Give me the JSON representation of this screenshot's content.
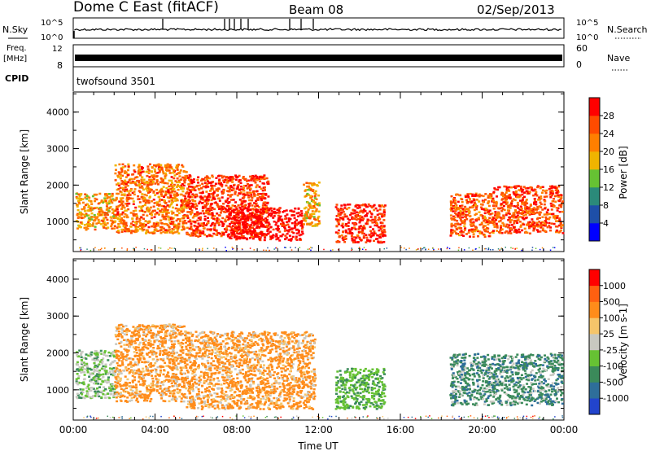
{
  "header": {
    "radar": "Dome C East (fitACF)",
    "beam": "Beam 08",
    "date": "02/Sep/2013"
  },
  "top_panels": {
    "nsky_label": "N.Sky",
    "nsky_ticks": [
      "10^5",
      "10^0"
    ],
    "nsearch_label": "N.Search",
    "nsearch_ticks": [
      "10^5",
      "10^0"
    ],
    "freq_label": "Freq.",
    "freq_unit": "[MHz]",
    "freq_ticks": [
      "12",
      "8"
    ],
    "nave_label": "Nave",
    "nave_ticks": [
      "60",
      "0"
    ],
    "cpid_label": "CPID",
    "cpid_value": "twofsound 3501",
    "line_color": "#000000"
  },
  "chart_data": [
    {
      "type": "heatmap",
      "name": "power-panel",
      "x": [
        "00:00",
        "04:00",
        "08:00",
        "12:00",
        "16:00",
        "20:00",
        "00:00"
      ],
      "xlim": [
        0,
        24
      ],
      "ylabel": "Slant Range [km]",
      "yticks": [
        "1000",
        "2000",
        "3000",
        "4000"
      ],
      "ylim": [
        180,
        4550
      ],
      "colorbar": {
        "label": "Power [dB]",
        "ticks": [
          "28",
          "24",
          "20",
          "16",
          "12",
          "8",
          "4"
        ],
        "colors": [
          "#0000ff",
          "#1e4fa8",
          "#2b8a7a",
          "#66c233",
          "#f0b400",
          "#ff7f00",
          "#ff4b00",
          "#ff0000"
        ]
      },
      "scatter_bands": [
        {
          "t": [
            0.1,
            2.0
          ],
          "r": [
            800,
            1800
          ],
          "tone": 0.55
        },
        {
          "t": [
            2.0,
            5.5
          ],
          "r": [
            700,
            2600
          ],
          "tone": 0.65
        },
        {
          "t": [
            5.5,
            9.5
          ],
          "r": [
            600,
            2300
          ],
          "tone": 0.8
        },
        {
          "t": [
            7.5,
            11.2
          ],
          "r": [
            500,
            1400
          ],
          "tone": 0.95
        },
        {
          "t": [
            11.2,
            12.0
          ],
          "r": [
            900,
            2100
          ],
          "tone": 0.5
        },
        {
          "t": [
            12.8,
            15.2
          ],
          "r": [
            450,
            1500
          ],
          "tone": 0.85
        },
        {
          "t": [
            18.4,
            20.5
          ],
          "r": [
            600,
            1800
          ],
          "tone": 0.7
        },
        {
          "t": [
            20.5,
            23.9
          ],
          "r": [
            700,
            2000
          ],
          "tone": 0.75
        }
      ]
    },
    {
      "type": "heatmap",
      "name": "velocity-panel",
      "x": [
        "00:00",
        "04:00",
        "08:00",
        "12:00",
        "16:00",
        "20:00",
        "00:00"
      ],
      "xlim": [
        0,
        24
      ],
      "xlabel": "Time UT",
      "ylabel": "Slant Range [km]",
      "yticks": [
        "1000",
        "2000",
        "3000",
        "4000"
      ],
      "ylim": [
        180,
        4550
      ],
      "colorbar": {
        "label": "Velocity [m s-1]",
        "ticks": [
          "1000",
          "500",
          "100",
          "25",
          "-25",
          "-100",
          "-500",
          "-1000"
        ],
        "colors": [
          "#2244cc",
          "#2e6e9a",
          "#3b8a5a",
          "#66c233",
          "#c8c8c0",
          "#f5c56a",
          "#ff8c1a",
          "#ff6010",
          "#ff0000"
        ]
      },
      "scatter_bands": [
        {
          "t": [
            0.1,
            2.0
          ],
          "r": [
            800,
            2100
          ],
          "tone": "mix-green-grey"
        },
        {
          "t": [
            2.0,
            5.5
          ],
          "r": [
            700,
            2800
          ],
          "tone": "orange"
        },
        {
          "t": [
            5.5,
            11.8
          ],
          "r": [
            500,
            2600
          ],
          "tone": "orange"
        },
        {
          "t": [
            12.8,
            15.2
          ],
          "r": [
            500,
            1600
          ],
          "tone": "green"
        },
        {
          "t": [
            18.4,
            23.9
          ],
          "r": [
            600,
            2000
          ],
          "tone": "teal"
        }
      ]
    }
  ]
}
